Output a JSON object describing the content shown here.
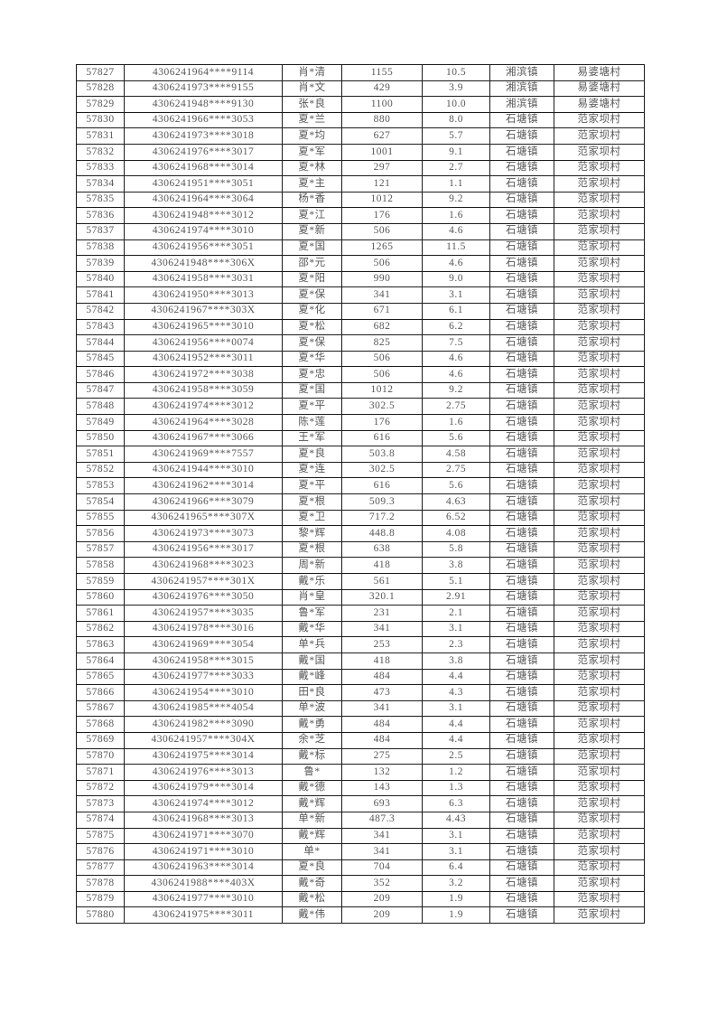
{
  "page": {
    "background_color": "#ffffff",
    "text_color": "#575757",
    "border_color": "#1c1c1c"
  },
  "table": {
    "rows": [
      [
        "57827",
        "4306241964****9114",
        "肖*清",
        "1155",
        "10.5",
        "湘滨镇",
        "易婆塘村"
      ],
      [
        "57828",
        "4306241973****9155",
        "肖*文",
        "429",
        "3.9",
        "湘滨镇",
        "易婆塘村"
      ],
      [
        "57829",
        "4306241948****9130",
        "张*良",
        "1100",
        "10.0",
        "湘滨镇",
        "易婆塘村"
      ],
      [
        "57830",
        "4306241966****3053",
        "夏*兰",
        "880",
        "8.0",
        "石塘镇",
        "范家坝村"
      ],
      [
        "57831",
        "4306241973****3018",
        "夏*均",
        "627",
        "5.7",
        "石塘镇",
        "范家坝村"
      ],
      [
        "57832",
        "4306241976****3017",
        "夏*军",
        "1001",
        "9.1",
        "石塘镇",
        "范家坝村"
      ],
      [
        "57833",
        "4306241968****3014",
        "夏*林",
        "297",
        "2.7",
        "石塘镇",
        "范家坝村"
      ],
      [
        "57834",
        "4306241951****3051",
        "夏*主",
        "121",
        "1.1",
        "石塘镇",
        "范家坝村"
      ],
      [
        "57835",
        "4306241964****3064",
        "杨*香",
        "1012",
        "9.2",
        "石塘镇",
        "范家坝村"
      ],
      [
        "57836",
        "4306241948****3012",
        "夏*江",
        "176",
        "1.6",
        "石塘镇",
        "范家坝村"
      ],
      [
        "57837",
        "4306241974****3010",
        "夏*新",
        "506",
        "4.6",
        "石塘镇",
        "范家坝村"
      ],
      [
        "57838",
        "4306241956****3051",
        "夏*国",
        "1265",
        "11.5",
        "石塘镇",
        "范家坝村"
      ],
      [
        "57839",
        "4306241948****306X",
        "邵*元",
        "506",
        "4.6",
        "石塘镇",
        "范家坝村"
      ],
      [
        "57840",
        "4306241958****3031",
        "夏*阳",
        "990",
        "9.0",
        "石塘镇",
        "范家坝村"
      ],
      [
        "57841",
        "4306241950****3013",
        "夏*保",
        "341",
        "3.1",
        "石塘镇",
        "范家坝村"
      ],
      [
        "57842",
        "4306241967****303X",
        "夏*化",
        "671",
        "6.1",
        "石塘镇",
        "范家坝村"
      ],
      [
        "57843",
        "4306241965****3010",
        "夏*松",
        "682",
        "6.2",
        "石塘镇",
        "范家坝村"
      ],
      [
        "57844",
        "4306241956****0074",
        "夏*保",
        "825",
        "7.5",
        "石塘镇",
        "范家坝村"
      ],
      [
        "57845",
        "4306241952****3011",
        "夏*华",
        "506",
        "4.6",
        "石塘镇",
        "范家坝村"
      ],
      [
        "57846",
        "4306241972****3038",
        "夏*忠",
        "506",
        "4.6",
        "石塘镇",
        "范家坝村"
      ],
      [
        "57847",
        "4306241958****3059",
        "夏*国",
        "1012",
        "9.2",
        "石塘镇",
        "范家坝村"
      ],
      [
        "57848",
        "4306241974****3012",
        "夏*平",
        "302.5",
        "2.75",
        "石塘镇",
        "范家坝村"
      ],
      [
        "57849",
        "4306241964****3028",
        "陈*莲",
        "176",
        "1.6",
        "石塘镇",
        "范家坝村"
      ],
      [
        "57850",
        "4306241967****3066",
        "王*军",
        "616",
        "5.6",
        "石塘镇",
        "范家坝村"
      ],
      [
        "57851",
        "4306241969****7557",
        "夏*良",
        "503.8",
        "4.58",
        "石塘镇",
        "范家坝村"
      ],
      [
        "57852",
        "4306241944****3010",
        "夏*连",
        "302.5",
        "2.75",
        "石塘镇",
        "范家坝村"
      ],
      [
        "57853",
        "4306241962****3014",
        "夏*平",
        "616",
        "5.6",
        "石塘镇",
        "范家坝村"
      ],
      [
        "57854",
        "4306241966****3079",
        "夏*根",
        "509.3",
        "4.63",
        "石塘镇",
        "范家坝村"
      ],
      [
        "57855",
        "4306241965****307X",
        "夏*卫",
        "717.2",
        "6.52",
        "石塘镇",
        "范家坝村"
      ],
      [
        "57856",
        "4306241973****3073",
        "黎*辉",
        "448.8",
        "4.08",
        "石塘镇",
        "范家坝村"
      ],
      [
        "57857",
        "4306241956****3017",
        "夏*根",
        "638",
        "5.8",
        "石塘镇",
        "范家坝村"
      ],
      [
        "57858",
        "4306241968****3023",
        "周*新",
        "418",
        "3.8",
        "石塘镇",
        "范家坝村"
      ],
      [
        "57859",
        "4306241957****301X",
        "戴*乐",
        "561",
        "5.1",
        "石塘镇",
        "范家坝村"
      ],
      [
        "57860",
        "4306241976****3050",
        "肖*皇",
        "320.1",
        "2.91",
        "石塘镇",
        "范家坝村"
      ],
      [
        "57861",
        "4306241957****3035",
        "鲁*军",
        "231",
        "2.1",
        "石塘镇",
        "范家坝村"
      ],
      [
        "57862",
        "4306241978****3016",
        "戴*华",
        "341",
        "3.1",
        "石塘镇",
        "范家坝村"
      ],
      [
        "57863",
        "4306241969****3054",
        "单*兵",
        "253",
        "2.3",
        "石塘镇",
        "范家坝村"
      ],
      [
        "57864",
        "4306241958****3015",
        "戴*国",
        "418",
        "3.8",
        "石塘镇",
        "范家坝村"
      ],
      [
        "57865",
        "4306241977****3033",
        "戴*峰",
        "484",
        "4.4",
        "石塘镇",
        "范家坝村"
      ],
      [
        "57866",
        "4306241954****3010",
        "田*良",
        "473",
        "4.3",
        "石塘镇",
        "范家坝村"
      ],
      [
        "57867",
        "4306241985****4054",
        "单*波",
        "341",
        "3.1",
        "石塘镇",
        "范家坝村"
      ],
      [
        "57868",
        "4306241982****3090",
        "戴*勇",
        "484",
        "4.4",
        "石塘镇",
        "范家坝村"
      ],
      [
        "57869",
        "4306241957****304X",
        "余*芝",
        "484",
        "4.4",
        "石塘镇",
        "范家坝村"
      ],
      [
        "57870",
        "4306241975****3014",
        "戴*标",
        "275",
        "2.5",
        "石塘镇",
        "范家坝村"
      ],
      [
        "57871",
        "4306241976****3013",
        "鲁*",
        "132",
        "1.2",
        "石塘镇",
        "范家坝村"
      ],
      [
        "57872",
        "4306241979****3014",
        "戴*德",
        "143",
        "1.3",
        "石塘镇",
        "范家坝村"
      ],
      [
        "57873",
        "4306241974****3012",
        "戴*辉",
        "693",
        "6.3",
        "石塘镇",
        "范家坝村"
      ],
      [
        "57874",
        "4306241968****3013",
        "单*新",
        "487.3",
        "4.43",
        "石塘镇",
        "范家坝村"
      ],
      [
        "57875",
        "4306241971****3070",
        "戴*辉",
        "341",
        "3.1",
        "石塘镇",
        "范家坝村"
      ],
      [
        "57876",
        "4306241971****3010",
        "单*",
        "341",
        "3.1",
        "石塘镇",
        "范家坝村"
      ],
      [
        "57877",
        "4306241963****3014",
        "夏*良",
        "704",
        "6.4",
        "石塘镇",
        "范家坝村"
      ],
      [
        "57878",
        "4306241988****403X",
        "戴*奇",
        "352",
        "3.2",
        "石塘镇",
        "范家坝村"
      ],
      [
        "57879",
        "4306241977****3010",
        "戴*松",
        "209",
        "1.9",
        "石塘镇",
        "范家坝村"
      ],
      [
        "57880",
        "4306241975****3011",
        "戴*伟",
        "209",
        "1.9",
        "石塘镇",
        "范家坝村"
      ]
    ]
  }
}
